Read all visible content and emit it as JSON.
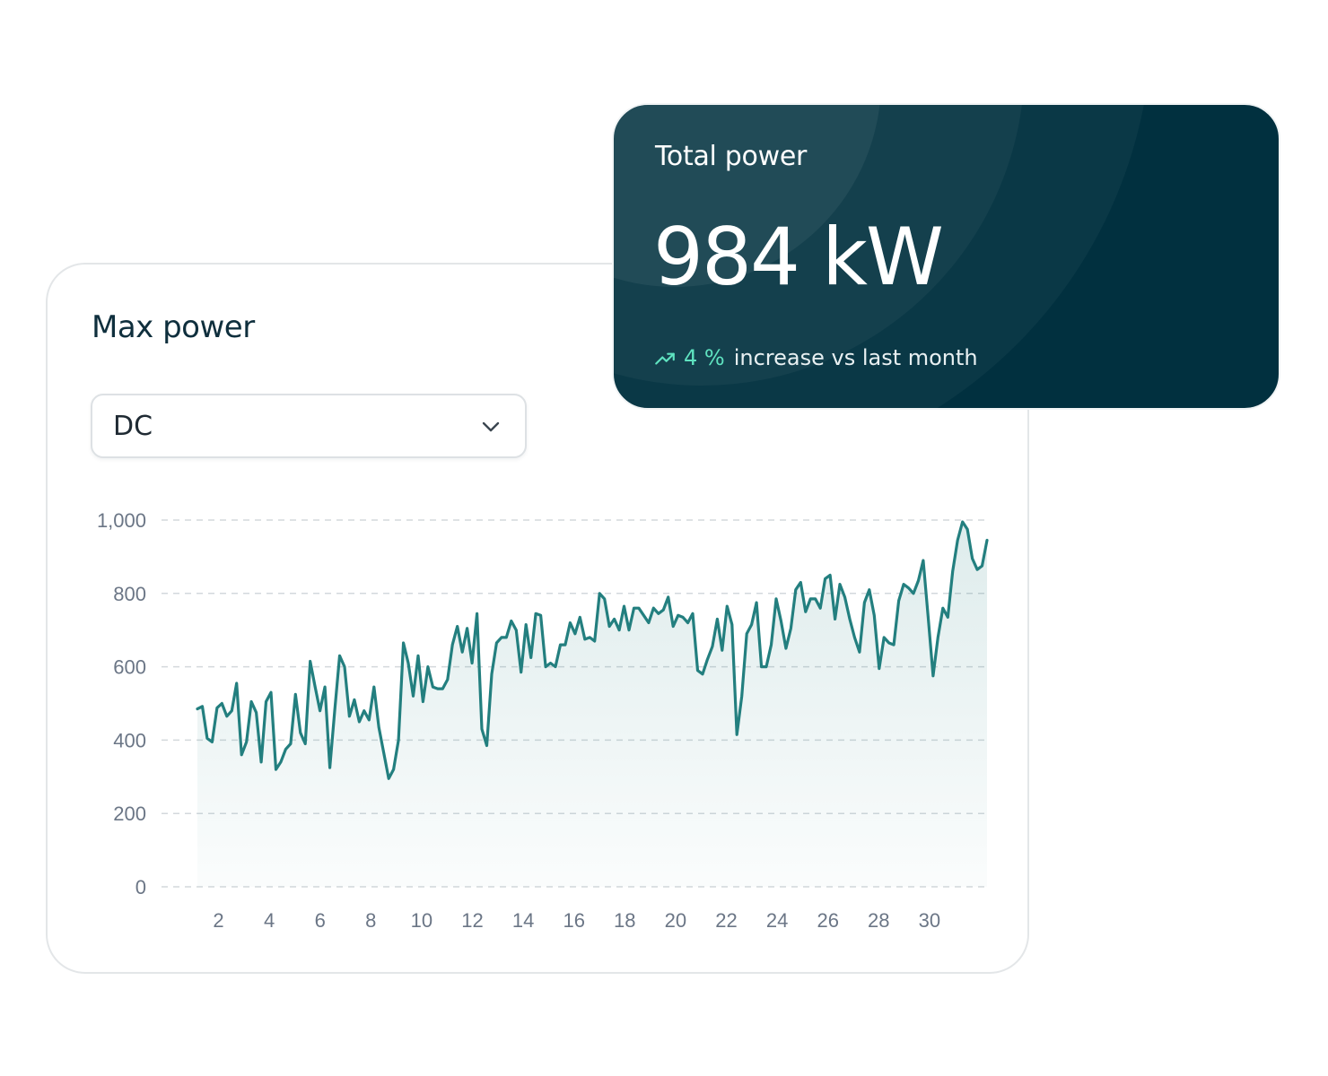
{
  "max_power": {
    "title": "Max power",
    "select": {
      "value": "DC"
    }
  },
  "total_power": {
    "title": "Total power",
    "value": "984 kW",
    "change_pct": "4 %",
    "change_text": "increase vs last month"
  },
  "colors": {
    "line": "#237f7f",
    "card_dark": "#01303f",
    "accent": "#5fe3c0"
  },
  "chart_data": {
    "type": "area",
    "title": "Max power",
    "xlabel": "",
    "ylabel": "",
    "ylim": [
      0,
      1000
    ],
    "xlim": [
      0,
      32
    ],
    "grid": true,
    "y_ticks": [
      "0",
      "200",
      "400",
      "600",
      "800",
      "1,000"
    ],
    "x_ticks": [
      "2",
      "4",
      "6",
      "8",
      "10",
      "12",
      "14",
      "16",
      "18",
      "20",
      "22",
      "24",
      "26",
      "28",
      "30"
    ],
    "series": [
      {
        "values": [
          485,
          492,
          405,
          395,
          488,
          500,
          465,
          480,
          555,
          360,
          395,
          505,
          475,
          340,
          505,
          530,
          320,
          340,
          375,
          390,
          525,
          420,
          390,
          615,
          545,
          480,
          545,
          325,
          480,
          630,
          600,
          465,
          510,
          450,
          480,
          455,
          545,
          435,
          365,
          295,
          320,
          400,
          665,
          610,
          520,
          630,
          505,
          600,
          545,
          540,
          540,
          565,
          660,
          710,
          640,
          705,
          610,
          745,
          430,
          385,
          580,
          665,
          680,
          680,
          725,
          700,
          585,
          715,
          625,
          745,
          740,
          600,
          610,
          600,
          660,
          660,
          720,
          690,
          735,
          675,
          680,
          670,
          800,
          785,
          710,
          730,
          700,
          765,
          700,
          760,
          760,
          740,
          720,
          760,
          745,
          755,
          790,
          710,
          740,
          735,
          720,
          745,
          590,
          580,
          620,
          655,
          730,
          645,
          765,
          715,
          415,
          520,
          690,
          715,
          775,
          600,
          600,
          660,
          785,
          725,
          650,
          705,
          810,
          830,
          750,
          785,
          785,
          760,
          840,
          850,
          730,
          825,
          790,
          730,
          680,
          640,
          775,
          810,
          740,
          595,
          680,
          665,
          660,
          780,
          825,
          815,
          800,
          835,
          890,
          735,
          575,
          680,
          760,
          735,
          860,
          945,
          995,
          975,
          895,
          865,
          875,
          945
        ]
      }
    ]
  }
}
